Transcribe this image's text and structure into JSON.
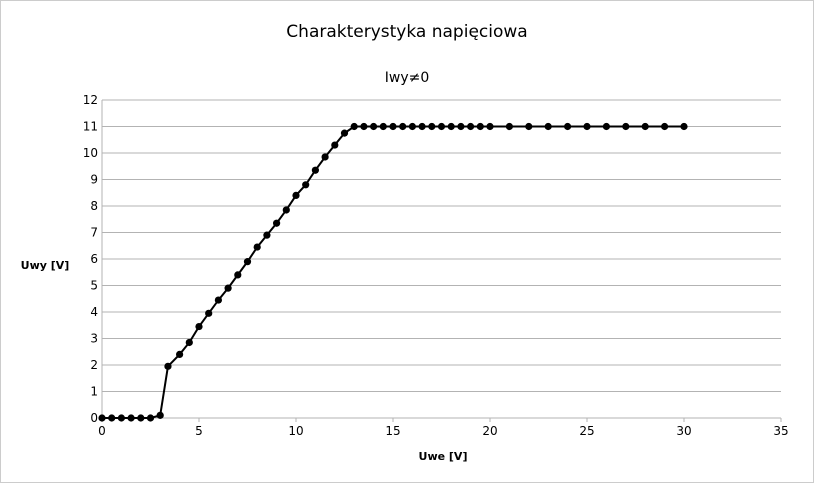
{
  "chart_data": {
    "type": "scatter",
    "title": "Charakterystyka napięciowa",
    "subtitle": "Iwy≠0",
    "xlabel": "Uwe [V]",
    "ylabel": "Uwy [V]",
    "xlim": [
      0,
      35
    ],
    "ylim": [
      0,
      12
    ],
    "xticks": [
      "0",
      "5",
      "10",
      "15",
      "20",
      "25",
      "30",
      "35"
    ],
    "yticks": [
      "0",
      "1",
      "2",
      "3",
      "4",
      "5",
      "6",
      "7",
      "8",
      "9",
      "10",
      "11",
      "12"
    ],
    "grid": "horizontal",
    "legend": "none",
    "line_color": "#000000",
    "series": [
      {
        "x": [
          0,
          0.5,
          1,
          1.5,
          2,
          2.5,
          3,
          3.4,
          4,
          4.5,
          5,
          5.5,
          6,
          6.5,
          7,
          7.5,
          8,
          8.5,
          9,
          9.5,
          10,
          10.5,
          11,
          11.5,
          12,
          12.5,
          13,
          13.5,
          14,
          14.5,
          15,
          15.5,
          16,
          16.5,
          17,
          17.5,
          18,
          18.5,
          19,
          19.5,
          20,
          21,
          22,
          23,
          24,
          25,
          26,
          27,
          28,
          29,
          30
        ],
        "y": [
          0,
          0,
          0,
          0,
          0,
          0,
          0.1,
          1.95,
          2.4,
          2.85,
          3.45,
          3.95,
          4.45,
          4.9,
          5.4,
          5.9,
          6.45,
          6.9,
          7.35,
          7.85,
          8.4,
          8.8,
          9.35,
          9.85,
          10.3,
          10.75,
          11,
          11,
          11,
          11,
          11,
          11,
          11,
          11,
          11,
          11,
          11,
          11,
          11,
          11,
          11,
          11,
          11,
          11,
          11,
          11,
          11,
          11,
          11,
          11,
          11
        ]
      }
    ]
  }
}
